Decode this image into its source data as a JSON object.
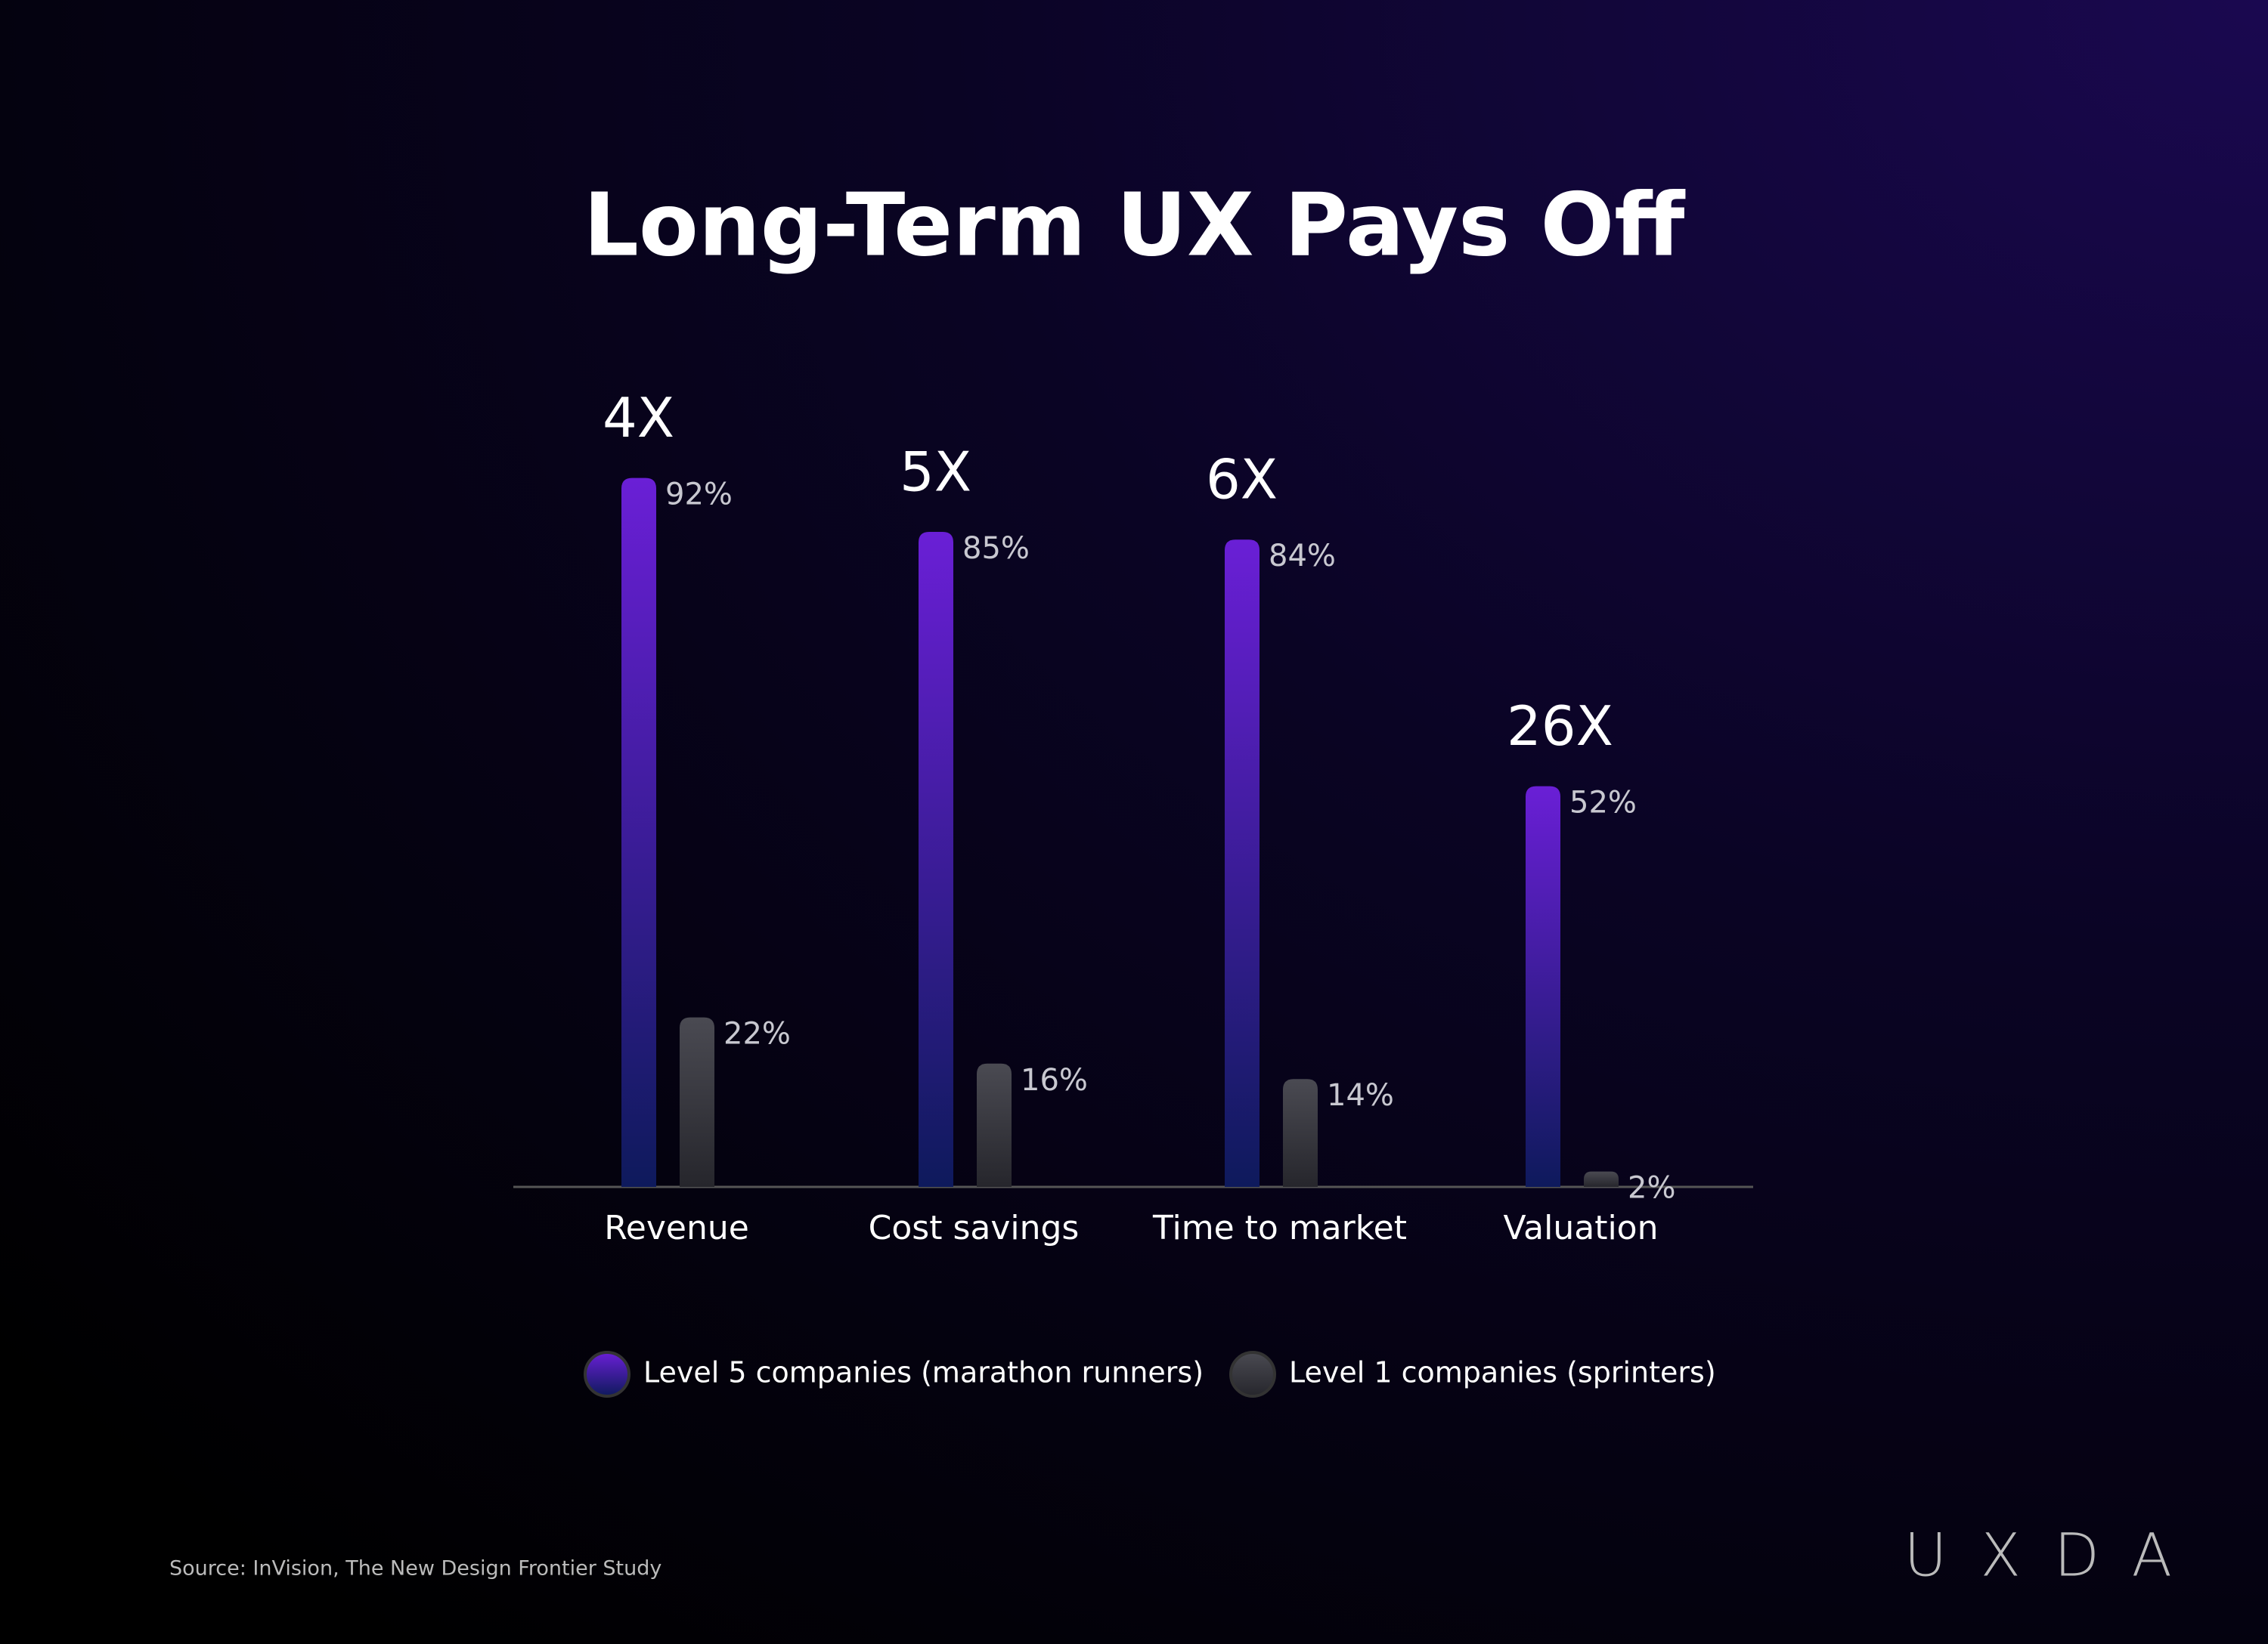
{
  "chart_data": {
    "type": "bar",
    "title": "Long-Term UX Pays Off",
    "categories": [
      "Revenue",
      "Cost savings",
      "Time to market",
      "Valuation"
    ],
    "annotations": [
      "4X",
      "5X",
      "6X",
      "26X"
    ],
    "series": [
      {
        "name": "Level 5 companies (marathon runners)",
        "color": "#6a1fd6",
        "values": [
          92,
          85,
          84,
          52
        ],
        "value_labels": [
          "92%",
          "85%",
          "84%",
          "52%"
        ]
      },
      {
        "name": "Level 1 companies (sprinters)",
        "color": "#4a4a52",
        "values": [
          22,
          16,
          14,
          2
        ],
        "value_labels": [
          "22%",
          "16%",
          "14%",
          "2%"
        ]
      }
    ],
    "source": "Source: InVision, The New Design Frontier Study",
    "logo": "UXDA"
  }
}
